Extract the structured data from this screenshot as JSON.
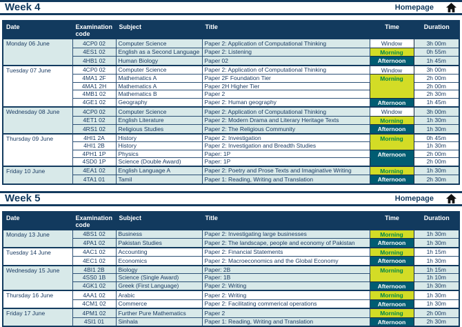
{
  "homepage_label": "Homepage",
  "table_headers": [
    "Date",
    "Examination code",
    "Subject",
    "Title",
    "Time",
    "Duration"
  ],
  "colors": {
    "navy": "#123A5E",
    "ink": "#1B3C63",
    "pale": "#D8E9E9",
    "yellow": "#D3DC26",
    "green": "#008649",
    "teal": "#005C72",
    "white": "#FFFFFF",
    "icon": "#111111"
  },
  "sections": [
    {
      "title": "Week 4",
      "days": [
        {
          "date": "Monday 06 June",
          "shaded": true,
          "exams": [
            {
              "code": "4CP0 02",
              "subject": "Computer Science",
              "title": "Paper 2: Application of Computational Thinking",
              "time": "Window",
              "timeRows": 1,
              "duration": "3h 00m"
            },
            {
              "code": "4ES1 02",
              "subject": "English as a Second Language",
              "title": "Paper 2: Listening",
              "time": "Morning",
              "timeRows": 1,
              "duration": "0h 55m"
            },
            {
              "code": "4HB1 02",
              "subject": "Human Biology",
              "title": "Paper 02",
              "time": "Afternoon",
              "timeRows": 1,
              "duration": "1h 45m"
            }
          ]
        },
        {
          "date": "Tuesday 07 June",
          "shaded": false,
          "exams": [
            {
              "code": "4CP0 02",
              "subject": "Computer Science",
              "title": "Paper 2: Application of Computational Thinking",
              "time": "Window",
              "timeRows": 1,
              "duration": "3h 00m"
            },
            {
              "code": "4MA1 2F",
              "subject": "Mathematics A",
              "title": "Paper 2F Foundation Tier",
              "time": "Morning",
              "timeRows": 3,
              "duration": "2h 00m"
            },
            {
              "code": "4MA1 2H",
              "subject": "Mathematics A",
              "title": "Paper 2H Higher Tier",
              "time": null,
              "duration": "2h 00m"
            },
            {
              "code": "4MB1 02",
              "subject": "Mathematics B",
              "title": "Paper 2",
              "time": null,
              "duration": "2h 30m"
            },
            {
              "code": "4GE1 02",
              "subject": "Geography",
              "title": "Paper 2: Human geography",
              "time": "Afternoon",
              "timeRows": 1,
              "duration": "1h 45m"
            }
          ]
        },
        {
          "date": "Wednesday 08 June",
          "shaded": true,
          "exams": [
            {
              "code": "4CP0 02",
              "subject": "Computer Science",
              "title": "Paper 2: Application of Computational Thinking",
              "time": "Window",
              "timeRows": 1,
              "duration": "3h 00m"
            },
            {
              "code": "4ET1 02",
              "subject": "English Literature",
              "title": "Paper 2: Modern Drama and Literary Heritage Texts",
              "time": "Morning",
              "timeRows": 1,
              "duration": "1h 30m"
            },
            {
              "code": "4RS1 02",
              "subject": "Religious Studies",
              "title": "Paper 2: The Religious Community",
              "time": "Afternoon",
              "timeRows": 1,
              "duration": "1h 30m"
            }
          ]
        },
        {
          "date": "Thursday 09 June",
          "shaded": false,
          "exams": [
            {
              "code": "4HI1 2A",
              "subject": "History",
              "title": "Paper 2: Investigation",
              "time": "Morning",
              "timeRows": 2,
              "duration": "0h 45m"
            },
            {
              "code": "4HI1 2B",
              "subject": "History",
              "title": "Paper 2: Investigation and Breadth Studies",
              "time": null,
              "duration": "1h 30m"
            },
            {
              "code": "4PH1 1P",
              "subject": "Physics",
              "title": "Paper: 1P",
              "time": "Afternoon",
              "timeRows": 2,
              "duration": "2h 00m"
            },
            {
              "code": "4SD0 1P",
              "subject": "Science (Double Award)",
              "title": "Paper: 1P",
              "time": null,
              "duration": "2h 00m"
            }
          ]
        },
        {
          "date": "Friday 10 June",
          "shaded": true,
          "exams": [
            {
              "code": "4EA1 02",
              "subject": "English Language A",
              "title": "Paper 2: Poetry and Prose Texts and Imaginative Writing",
              "time": "Morning",
              "timeRows": 1,
              "duration": "1h 30m"
            },
            {
              "code": "4TA1 01",
              "subject": "Tamil",
              "title": "Paper 1: Reading, Writing and Translation",
              "time": "Afternoon",
              "timeRows": 1,
              "duration": "2h 30m"
            }
          ]
        }
      ]
    },
    {
      "title": "Week 5",
      "days": [
        {
          "date": "Monday 13 June",
          "shaded": true,
          "exams": [
            {
              "code": "4BS1 02",
              "subject": "Business",
              "title": "Paper 2: Investigating large businesses",
              "time": "Morning",
              "timeRows": 1,
              "duration": "1h 30m"
            },
            {
              "code": "4PA1 02",
              "subject": "Pakistan Studies",
              "title": "Paper 2: The landscape, people and economy of Pakistan",
              "time": "Afternoon",
              "timeRows": 1,
              "duration": "1h 30m"
            }
          ]
        },
        {
          "date": "Tuesday 14 June",
          "shaded": false,
          "exams": [
            {
              "code": "4AC1 02",
              "subject": "Accounting",
              "title": "Paper 2: Financial Statements",
              "time": "Morning",
              "timeRows": 1,
              "duration": "1h 15m"
            },
            {
              "code": "4EC1 02",
              "subject": "Economics",
              "title": "Paper 2: Macroeconomics and the Global Economy",
              "time": "Afternoon",
              "timeRows": 1,
              "duration": "1h 30m"
            }
          ]
        },
        {
          "date": "Wednesday 15 June",
          "shaded": true,
          "exams": [
            {
              "code": "4BI1 2B",
              "subject": "Biology",
              "title": "Paper: 2B",
              "time": "Morning",
              "timeRows": 2,
              "duration": "1h 15m"
            },
            {
              "code": "4SS0 1B",
              "subject": "Science (Single Award)",
              "title": "Paper: 1B",
              "time": null,
              "duration": "1h 10m"
            },
            {
              "code": "4GK1 02",
              "subject": "Greek (First Language)",
              "title": "Paper 2: Writing",
              "time": "Afternoon",
              "timeRows": 1,
              "duration": "1h 30m"
            }
          ]
        },
        {
          "date": "Thursday 16 June",
          "shaded": false,
          "exams": [
            {
              "code": "4AA1 02",
              "subject": "Arabic",
              "title": "Paper 2: Writing",
              "time": "Morning",
              "timeRows": 1,
              "duration": "1h 30m"
            },
            {
              "code": "4CM1 02",
              "subject": "Commerce",
              "title": "Paper 2: Facilitating commerical operations",
              "time": "Afternoon",
              "timeRows": 1,
              "duration": "1h 30m"
            }
          ]
        },
        {
          "date": "Friday 17 June",
          "shaded": true,
          "exams": [
            {
              "code": "4PM1 02",
              "subject": "Further Pure Mathematics",
              "title": "Paper 2",
              "time": "Morning",
              "timeRows": 1,
              "duration": "2h 00m"
            },
            {
              "code": "4SI1 01",
              "subject": "Sinhala",
              "title": "Paper 1: Reading, Writing and Translation",
              "time": "Afternoon",
              "timeRows": 1,
              "duration": "2h 30m"
            }
          ]
        }
      ]
    }
  ]
}
